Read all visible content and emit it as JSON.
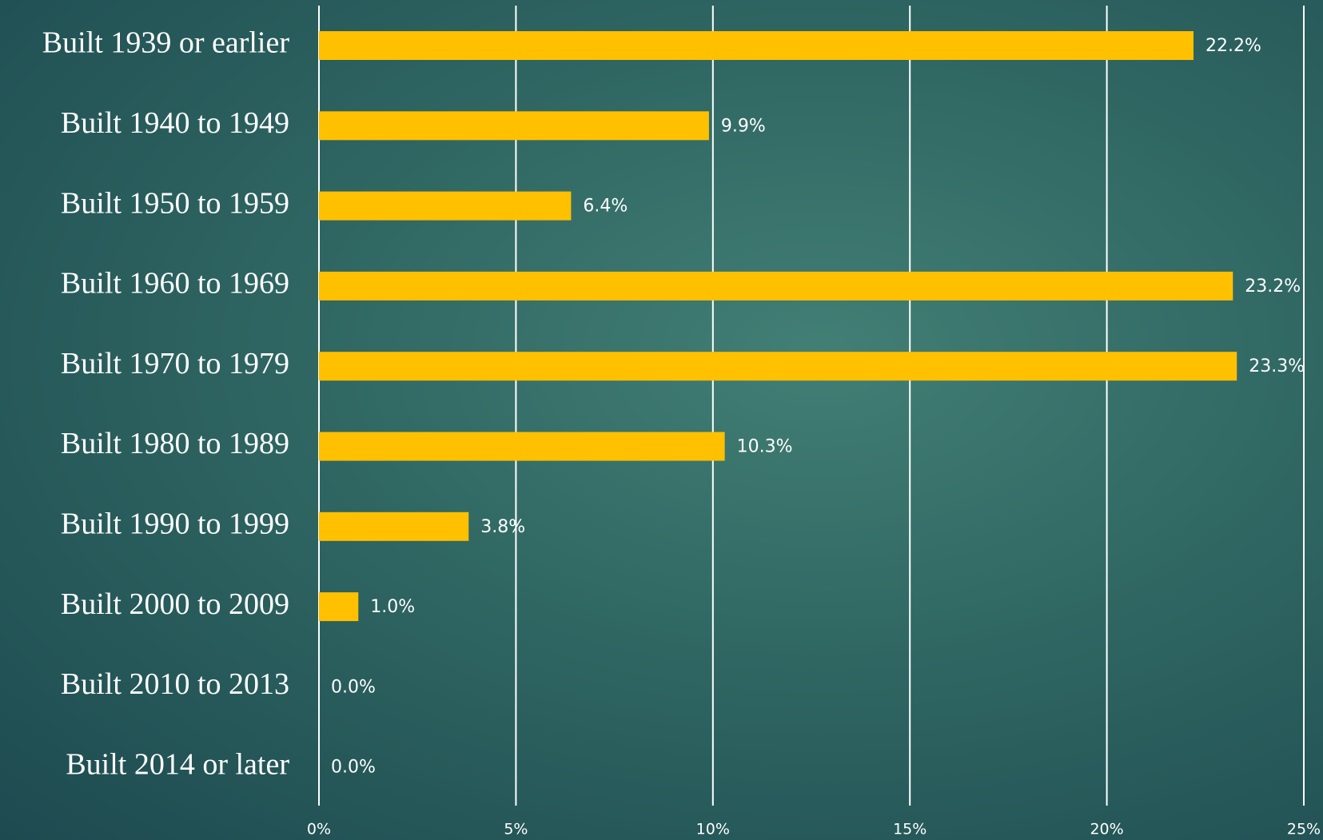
{
  "chart_data": {
    "type": "bar",
    "orientation": "horizontal",
    "categories": [
      "Built 1939 or earlier",
      "Built 1940 to 1949",
      "Built 1950 to 1959",
      "Built 1960 to 1969",
      "Built 1970 to 1979",
      "Built 1980 to 1989",
      "Built 1990 to 1999",
      "Built 2000 to 2009",
      "Built 2010 to 2013",
      "Built 2014 or later"
    ],
    "values": [
      22.2,
      9.9,
      6.4,
      23.2,
      23.3,
      10.3,
      3.8,
      1.0,
      0.0,
      0.0
    ],
    "value_labels": [
      "22.2%",
      "9.9%",
      "6.4%",
      "23.2%",
      "23.3%",
      "10.3%",
      "3.8%",
      "1.0%",
      "0.0%",
      "0.0%"
    ],
    "color": "#FFC000",
    "xlim": [
      0,
      25
    ],
    "xticks": [
      {
        "value": 0,
        "label": "0%"
      },
      {
        "value": 5,
        "label": "5%"
      },
      {
        "value": 10,
        "label": "10%"
      },
      {
        "value": 15,
        "label": "15%"
      },
      {
        "value": 20,
        "label": "20%"
      },
      {
        "value": 25,
        "label": "25%"
      }
    ],
    "grid": true
  }
}
